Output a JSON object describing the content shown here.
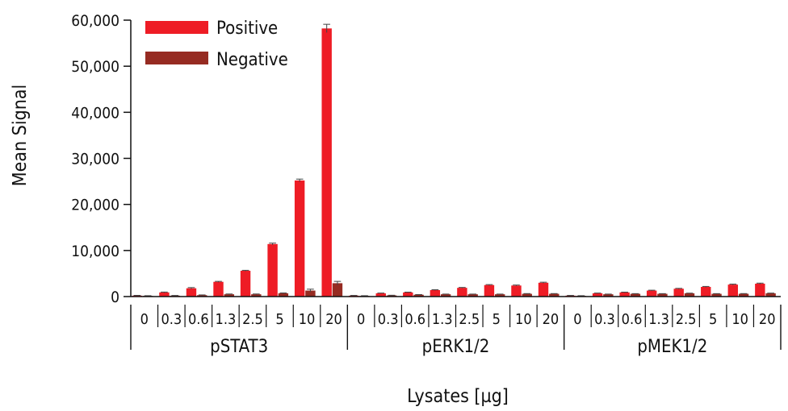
{
  "chart_data": {
    "type": "bar",
    "title": "",
    "ylabel": "Mean Signal",
    "xlabel": "Lysates [µg]",
    "ylim": [
      0,
      60000
    ],
    "yticks": [
      0,
      10000,
      20000,
      30000,
      40000,
      50000,
      60000
    ],
    "ytick_labels": [
      "0",
      "10,000",
      "20,000",
      "30,000",
      "40,000",
      "50,000",
      "60,000"
    ],
    "legend": {
      "placement": "top-left"
    },
    "grid": false,
    "colors": {
      "Positive": "#ee1c25",
      "Negative": "#962b22"
    },
    "groups": [
      {
        "name": "pSTAT3",
        "categories": [
          "0",
          "0.3",
          "0.6",
          "1.3",
          "2.5",
          "5",
          "10",
          "20"
        ],
        "series": [
          {
            "name": "Positive",
            "values": [
              200,
              900,
              1800,
              3200,
              5600,
              11400,
              25200,
              58200
            ],
            "errors": [
              60,
              80,
              150,
              100,
              100,
              200,
              300,
              900
            ]
          },
          {
            "name": "Negative",
            "values": [
              150,
              200,
              300,
              500,
              500,
              700,
              1300,
              2900
            ],
            "errors": [
              40,
              40,
              60,
              60,
              60,
              80,
              300,
              400
            ]
          }
        ]
      },
      {
        "name": "pERK1/2",
        "categories": [
          "0",
          "0.3",
          "0.6",
          "1.3",
          "2.5",
          "5",
          "10",
          "20"
        ],
        "series": [
          {
            "name": "Positive",
            "values": [
              200,
              700,
              900,
              1400,
              1900,
              2500,
              2400,
              3000
            ],
            "errors": [
              50,
              60,
              60,
              80,
              80,
              100,
              100,
              120
            ]
          },
          {
            "name": "Negative",
            "values": [
              150,
              250,
              400,
              500,
              500,
              500,
              600,
              600
            ],
            "errors": [
              40,
              40,
              40,
              40,
              40,
              40,
              50,
              50
            ]
          }
        ]
      },
      {
        "name": "pMEK1/2",
        "categories": [
          "0",
          "0.3",
          "0.6",
          "1.3",
          "2.5",
          "5",
          "10",
          "20"
        ],
        "series": [
          {
            "name": "Positive",
            "values": [
              200,
              700,
              900,
              1300,
              1700,
              2100,
              2600,
              2800
            ],
            "errors": [
              50,
              60,
              60,
              80,
              80,
              100,
              100,
              120
            ]
          },
          {
            "name": "Negative",
            "values": [
              150,
              500,
              600,
              600,
              700,
              600,
              600,
              700
            ],
            "errors": [
              40,
              40,
              40,
              40,
              40,
              40,
              50,
              50
            ]
          }
        ]
      }
    ]
  }
}
